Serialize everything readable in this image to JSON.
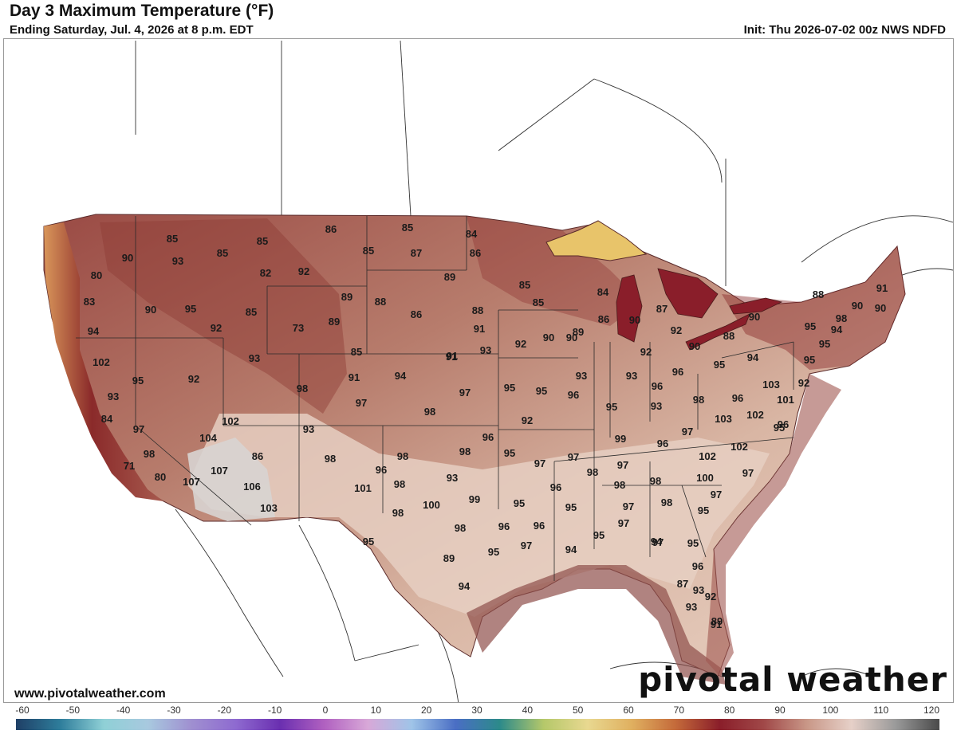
{
  "header": {
    "title": "Day 3 Maximum Temperature (°F)",
    "subtitle": "Ending Saturday, Jul. 4, 2026 at 8 p.m. EDT",
    "init": "Init: Thu 2026-07-02 00z NWS NDFD"
  },
  "footer": {
    "website": "www.pivotalweather.com",
    "brand": "pivotal weather"
  },
  "colors": {
    "warm_land": "#e9cdbd",
    "hot_land": "#d9b6a4",
    "mid_land": "#b37462",
    "dark_red": "#8a2a2a",
    "lake_yellow": "#e8c46a",
    "coast_orange": "#d9965a",
    "background": "#ffffff"
  },
  "scale": {
    "labels": [
      "-60",
      "-50",
      "-40",
      "-30",
      "-20",
      "-10",
      "0",
      "10",
      "20",
      "30",
      "40",
      "50",
      "60",
      "70",
      "80",
      "90",
      "100",
      "110",
      "120"
    ],
    "gradient": [
      "#1f3f66",
      "#2e7d9b",
      "#8fd0d6",
      "#a8c9df",
      "#9f8fd0",
      "#8e6ad0",
      "#6a2fb0",
      "#b060c0",
      "#d8a8d8",
      "#9fc4e8",
      "#4a6ec4",
      "#2c8a8a",
      "#b5c86a",
      "#e8d890",
      "#e0b060",
      "#c46a3a",
      "#8a1e2a",
      "#a04848",
      "#c99888",
      "#e6d0c8",
      "#9a9a9a",
      "#4a4a4a"
    ]
  },
  "temperatures": [
    {
      "v": "85"
    },
    {
      "v": "90"
    },
    {
      "v": "93"
    },
    {
      "v": "85"
    },
    {
      "v": "85"
    },
    {
      "v": "86"
    },
    {
      "v": "80"
    },
    {
      "v": "83"
    },
    {
      "v": "90"
    },
    {
      "v": "95"
    },
    {
      "v": "92"
    },
    {
      "v": "85"
    },
    {
      "v": "94"
    },
    {
      "v": "82"
    },
    {
      "v": "92"
    },
    {
      "v": "89"
    },
    {
      "v": "73"
    },
    {
      "v": "89"
    },
    {
      "v": "85"
    },
    {
      "v": "85"
    },
    {
      "v": "87"
    },
    {
      "v": "89"
    },
    {
      "v": "84"
    },
    {
      "v": "86"
    },
    {
      "v": "88"
    },
    {
      "v": "86"
    },
    {
      "v": "85"
    },
    {
      "v": "85"
    },
    {
      "v": "88"
    },
    {
      "v": "91"
    },
    {
      "v": "91"
    },
    {
      "v": "93"
    },
    {
      "v": "92"
    },
    {
      "v": "90"
    },
    {
      "v": "89"
    },
    {
      "v": "86"
    },
    {
      "v": "84"
    },
    {
      "v": "90"
    },
    {
      "v": "87"
    },
    {
      "v": "92"
    },
    {
      "v": "90"
    },
    {
      "v": "88"
    },
    {
      "v": "90"
    },
    {
      "v": "95"
    },
    {
      "v": "94"
    },
    {
      "v": "95"
    },
    {
      "v": "90"
    },
    {
      "v": "88"
    },
    {
      "v": "91"
    },
    {
      "v": "102"
    },
    {
      "v": "95"
    },
    {
      "v": "92"
    },
    {
      "v": "93"
    },
    {
      "v": "84"
    },
    {
      "v": "97"
    },
    {
      "v": "98"
    },
    {
      "v": "71"
    },
    {
      "v": "80"
    },
    {
      "v": "107"
    },
    {
      "v": "104"
    },
    {
      "v": "102"
    },
    {
      "v": "107"
    },
    {
      "v": "86"
    },
    {
      "v": "106"
    },
    {
      "v": "103"
    },
    {
      "v": "93"
    },
    {
      "v": "98"
    },
    {
      "v": "98"
    },
    {
      "v": "91"
    },
    {
      "v": "97"
    },
    {
      "v": "94"
    },
    {
      "v": "85"
    },
    {
      "v": "91"
    },
    {
      "v": "93"
    },
    {
      "v": "97"
    },
    {
      "v": "95"
    },
    {
      "v": "95"
    },
    {
      "v": "98"
    },
    {
      "v": "92"
    },
    {
      "v": "90"
    },
    {
      "v": "93"
    },
    {
      "v": "93"
    },
    {
      "v": "92"
    },
    {
      "v": "96"
    },
    {
      "v": "96"
    },
    {
      "v": "95"
    },
    {
      "v": "94"
    },
    {
      "v": "95"
    },
    {
      "v": "96"
    },
    {
      "v": "98"
    },
    {
      "v": "93"
    },
    {
      "v": "95"
    },
    {
      "v": "96"
    },
    {
      "v": "103"
    },
    {
      "v": "102"
    },
    {
      "v": "101"
    },
    {
      "v": "92"
    },
    {
      "v": "103"
    },
    {
      "v": "95"
    },
    {
      "v": "98"
    },
    {
      "v": "96"
    },
    {
      "v": "95"
    },
    {
      "v": "99"
    },
    {
      "v": "96"
    },
    {
      "v": "97"
    },
    {
      "v": "102"
    },
    {
      "v": "101"
    },
    {
      "v": "98"
    },
    {
      "v": "96"
    },
    {
      "v": "98"
    },
    {
      "v": "93"
    },
    {
      "v": "97"
    },
    {
      "v": "97"
    },
    {
      "v": "98"
    },
    {
      "v": "98"
    },
    {
      "v": "97"
    },
    {
      "v": "98"
    },
    {
      "v": "102"
    },
    {
      "v": "100"
    },
    {
      "v": "97"
    },
    {
      "v": "100"
    },
    {
      "v": "99"
    },
    {
      "v": "98"
    },
    {
      "v": "95"
    },
    {
      "v": "96"
    },
    {
      "v": "95"
    },
    {
      "v": "97"
    },
    {
      "v": "98"
    },
    {
      "v": "97"
    },
    {
      "v": "95"
    },
    {
      "v": "98"
    },
    {
      "v": "96"
    },
    {
      "v": "96"
    },
    {
      "v": "95"
    },
    {
      "v": "97"
    },
    {
      "v": "95"
    },
    {
      "v": "89"
    },
    {
      "v": "95"
    },
    {
      "v": "97"
    },
    {
      "v": "94"
    },
    {
      "v": "94"
    },
    {
      "v": "95"
    },
    {
      "v": "96"
    },
    {
      "v": "94"
    },
    {
      "v": "93"
    },
    {
      "v": "87"
    },
    {
      "v": "93"
    },
    {
      "v": "91"
    },
    {
      "v": "92"
    },
    {
      "v": "89"
    },
    {
      "v": "97"
    },
    {
      "v": "90"
    },
    {
      "v": "96"
    },
    {
      "v": "98"
    }
  ]
}
